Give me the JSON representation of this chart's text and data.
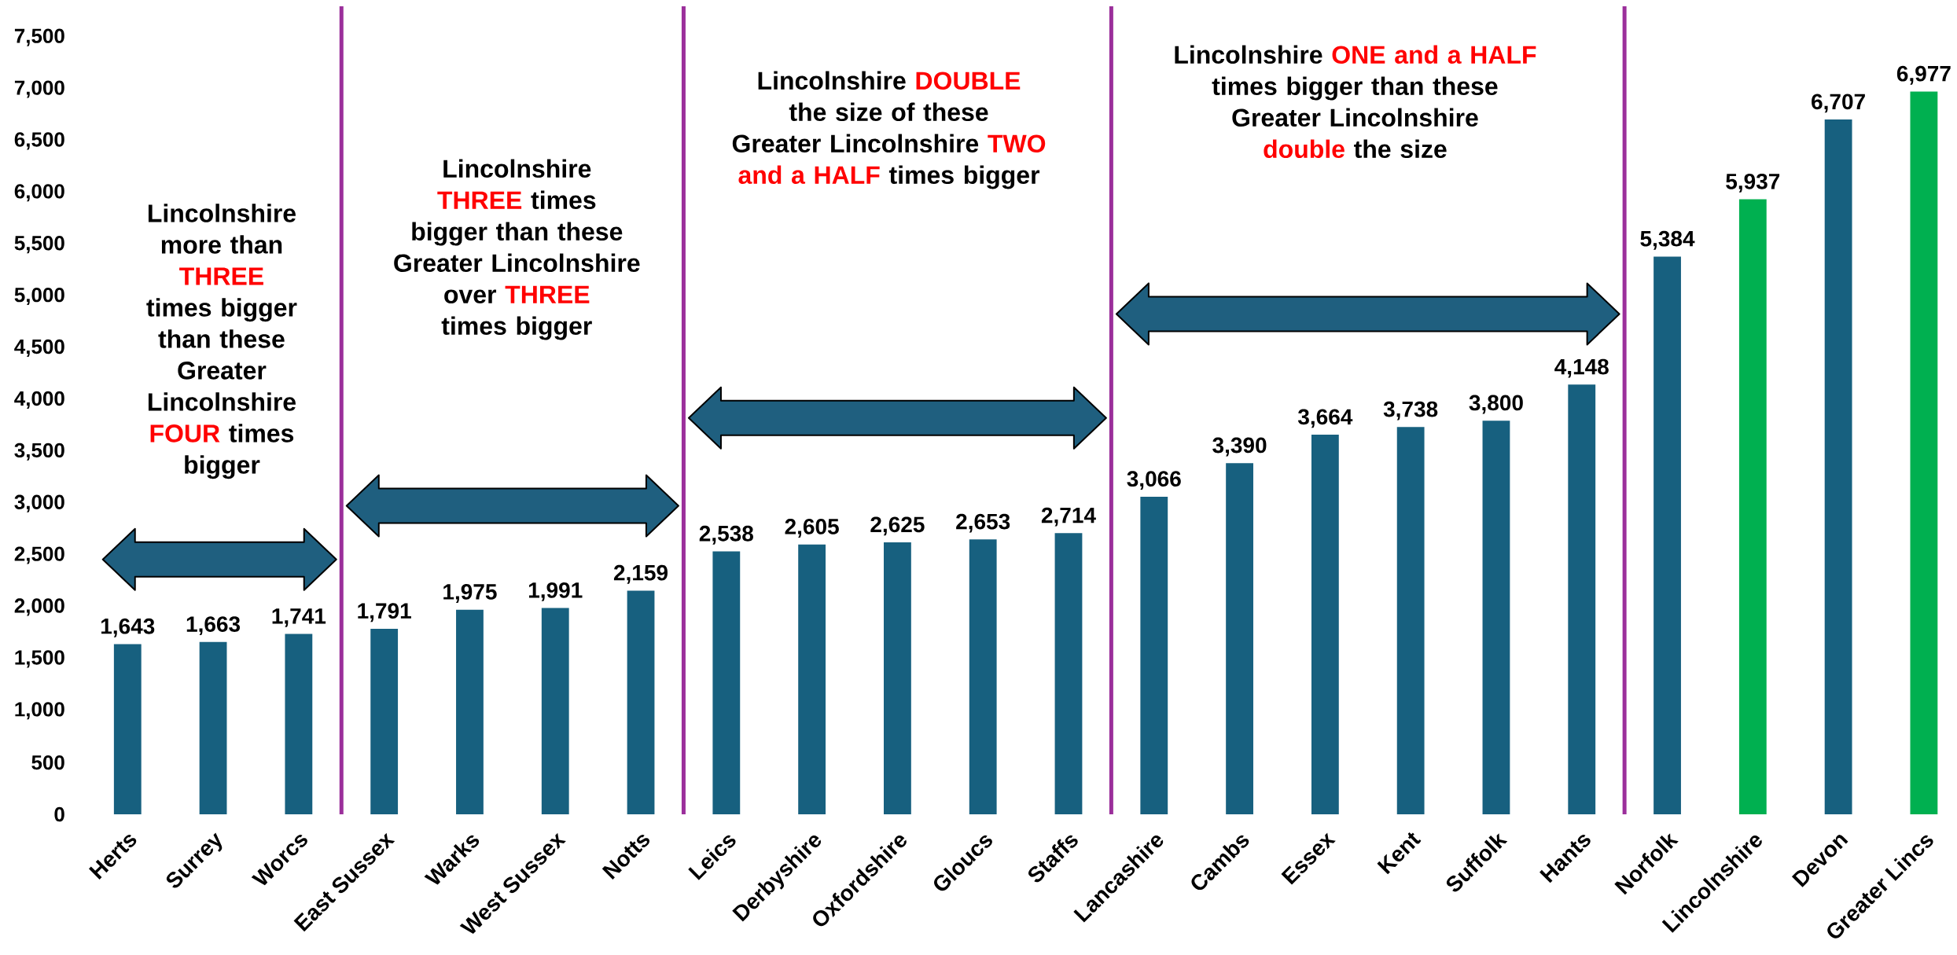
{
  "chart_data": {
    "type": "bar",
    "categories": [
      "Herts",
      "Surrey",
      "Worcs",
      "East Sussex",
      "Warks",
      "West Sussex",
      "Notts",
      "Leics",
      "Derbyshire",
      "Oxfordshire",
      "Gloucs",
      "Staffs",
      "Lancashire",
      "Cambs",
      "Essex",
      "Kent",
      "Suffolk",
      "Hants",
      "Norfolk",
      "Lincolnshire",
      "Devon",
      "Greater Lincs"
    ],
    "values": [
      1643,
      1663,
      1741,
      1791,
      1975,
      1991,
      2159,
      2538,
      2605,
      2625,
      2653,
      2714,
      3066,
      3390,
      3664,
      3738,
      3800,
      4148,
      5384,
      5937,
      6707,
      6977
    ],
    "value_labels": [
      "1,643",
      "1,663",
      "1,741",
      "1,791",
      "1,975",
      "1,991",
      "2,159",
      "2,538",
      "2,605",
      "2,625",
      "2,653",
      "2,714",
      "3,066",
      "3,390",
      "3,664",
      "3,738",
      "3,800",
      "4,148",
      "5,384",
      "5,937",
      "6,707",
      "6,977"
    ],
    "colors": [
      "#17607f",
      "#17607f",
      "#17607f",
      "#17607f",
      "#17607f",
      "#17607f",
      "#17607f",
      "#17607f",
      "#17607f",
      "#17607f",
      "#17607f",
      "#17607f",
      "#17607f",
      "#17607f",
      "#17607f",
      "#17607f",
      "#17607f",
      "#17607f",
      "#17607f",
      "#00b050",
      "#17607f",
      "#00b050"
    ],
    "ylim": [
      0,
      7800
    ],
    "yticks": [
      0,
      500,
      {
        "value": 1000,
        "label": "1,000"
      },
      {
        "value": 1500,
        "label": "1,500"
      },
      {
        "value": 2000,
        "label": "2,000"
      },
      {
        "value": 2500,
        "label": "2,500"
      },
      {
        "value": 3000,
        "label": "3,000"
      },
      {
        "value": 3500,
        "label": "3,500"
      },
      {
        "value": 4000,
        "label": "4,000"
      },
      {
        "value": 4500,
        "label": "4,500"
      },
      {
        "value": 5000,
        "label": "5,000"
      },
      {
        "value": 5500,
        "label": "5,500"
      },
      {
        "value": 6000,
        "label": "6,000"
      },
      {
        "value": 6500,
        "label": "6,500"
      },
      {
        "value": 7000,
        "label": "7,000"
      },
      {
        "value": 7500,
        "label": "7,500"
      }
    ],
    "grid": false,
    "annotations": [
      "Lincolnshire more than **THREE** times bigger than these",
      "Greater Lincolnshire **FOUR** times bigger",
      "Lincolnshire **THREE** times bigger than these",
      "Greater Lincolnshire over **THREE** times bigger",
      "Lincolnshire **DOUBLE** the size of these",
      "Greater Lincolnshire **TWO and a HALF**  times bigger",
      "Lincolnshire **ONE and a HALF** times bigger than these",
      "Greater Lincolnshire **double** the size"
    ]
  }
}
